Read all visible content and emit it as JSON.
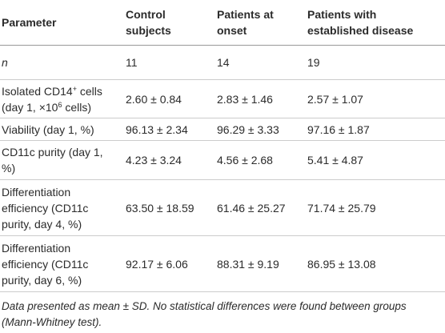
{
  "table": {
    "header": [
      "Parameter",
      "Control subjects",
      "Patients at onset",
      "Patients with established disease"
    ],
    "rows": [
      {
        "label": [
          {
            "text": "n"
          }
        ],
        "italic": true,
        "values": [
          "11",
          "14",
          "19"
        ]
      },
      {
        "label": [
          {
            "text": "Isolated CD14"
          },
          {
            "sup": "+"
          },
          {
            "text": " cells (day 1, ×10"
          },
          {
            "sup": "6"
          },
          {
            "text": " cells)"
          }
        ],
        "values": [
          "2.60 ± 0.84",
          "2.83 ± 1.46",
          "2.57 ± 1.07"
        ]
      },
      {
        "label": [
          {
            "text": "Viability (day 1, %)"
          }
        ],
        "values": [
          "96.13 ± 2.34",
          "96.29 ± 3.33",
          "97.16 ± 1.87"
        ]
      },
      {
        "label": [
          {
            "text": "CD11c purity (day 1, %)"
          }
        ],
        "values": [
          "4.23 ± 3.24",
          "4.56 ± 2.68",
          "5.41 ± 4.87"
        ]
      },
      {
        "label": [
          {
            "text": "Differentiation efficiency (CD11c purity, day 4, %)"
          }
        ],
        "values": [
          "63.50 ± 18.59",
          "61.46 ± 25.27",
          "71.74 ± 25.79"
        ]
      },
      {
        "label": [
          {
            "text": "Differentiation efficiency (CD11c purity, day 6, %)"
          }
        ],
        "values": [
          "92.17 ± 6.06",
          "88.31 ± 9.19",
          "86.95 ± 13.08"
        ]
      }
    ],
    "footnote": "Data presented as mean ± SD. No statistical differences were found between groups (Mann-Whitney test)."
  }
}
